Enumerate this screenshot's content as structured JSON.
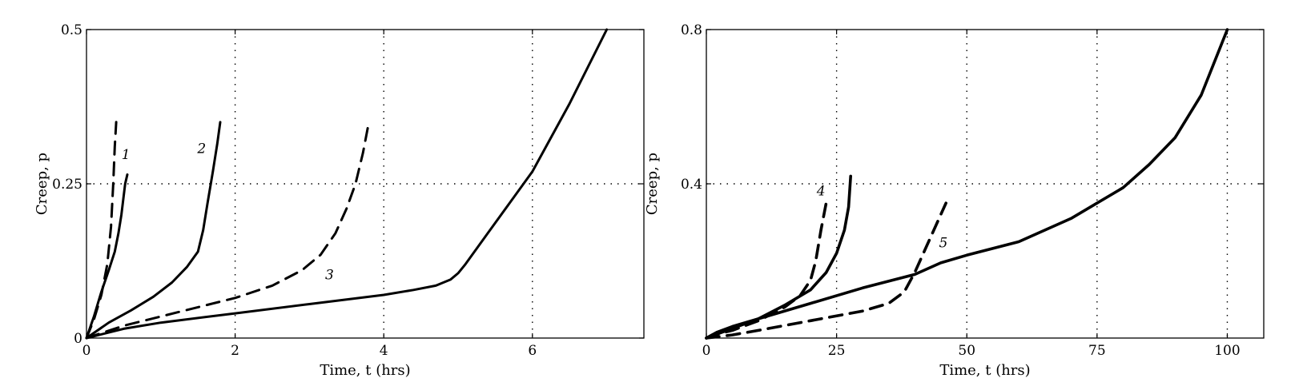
{
  "chart_data": [
    {
      "type": "line",
      "xlabel": "Time, t (hrs)",
      "ylabel": "Creep, p",
      "xlim": [
        0,
        7.5
      ],
      "ylim": [
        0,
        0.5
      ],
      "x_ticks": [
        0,
        2,
        4,
        6
      ],
      "y_ticks": [
        0,
        0.25,
        0.5
      ],
      "x_tick_labels": [
        "0",
        "2",
        "4",
        "6"
      ],
      "y_tick_labels": [
        "0",
        "0.25",
        "0.5"
      ],
      "grid": "dotted",
      "grid_x": [
        2,
        4,
        6
      ],
      "grid_y": [
        0.25
      ],
      "series": [
        {
          "label": "1",
          "style": "dashed",
          "x": [
            0,
            0.1,
            0.2,
            0.28,
            0.33,
            0.36,
            0.38,
            0.4
          ],
          "y": [
            0,
            0.03,
            0.07,
            0.12,
            0.18,
            0.25,
            0.31,
            0.35
          ]
        },
        {
          "label": "1",
          "style": "solid",
          "x": [
            0,
            0.1,
            0.2,
            0.3,
            0.38,
            0.43,
            0.47,
            0.5,
            0.52,
            0.55
          ],
          "y": [
            0,
            0.035,
            0.075,
            0.11,
            0.14,
            0.17,
            0.2,
            0.23,
            0.25,
            0.265
          ]
        },
        {
          "label": "2",
          "style": "solid",
          "x": [
            0,
            0.3,
            0.6,
            0.9,
            1.15,
            1.35,
            1.5,
            1.57,
            1.63,
            1.7,
            1.76,
            1.8
          ],
          "y": [
            0,
            0.025,
            0.045,
            0.067,
            0.09,
            0.115,
            0.14,
            0.175,
            0.22,
            0.27,
            0.315,
            0.35
          ]
        },
        {
          "label": "3",
          "style": "dashed",
          "x": [
            0,
            0.5,
            1,
            1.5,
            2,
            2.5,
            2.9,
            3.15,
            3.35,
            3.5,
            3.62,
            3.72,
            3.8
          ],
          "y": [
            0,
            0.02,
            0.035,
            0.05,
            0.065,
            0.085,
            0.11,
            0.135,
            0.17,
            0.21,
            0.25,
            0.3,
            0.35
          ]
        },
        {
          "label": "",
          "style": "solid",
          "x": [
            0,
            0.5,
            1,
            2,
            3,
            4,
            4.4,
            4.7,
            4.9,
            5.0,
            5.1,
            5.4,
            6,
            6.5,
            7
          ],
          "y": [
            0,
            0.015,
            0.025,
            0.04,
            0.055,
            0.07,
            0.078,
            0.085,
            0.095,
            0.105,
            0.12,
            0.17,
            0.27,
            0.38,
            0.5
          ]
        }
      ],
      "labels": [
        {
          "text": "1",
          "x": 0.53,
          "y": 0.29
        },
        {
          "text": "2",
          "x": 1.55,
          "y": 0.3
        },
        {
          "text": "3",
          "x": 3.27,
          "y": 0.095
        }
      ]
    },
    {
      "type": "line",
      "xlabel": "Time, t (hrs)",
      "ylabel": "Creep, p",
      "xlim": [
        0,
        107
      ],
      "ylim": [
        0,
        0.8
      ],
      "x_ticks": [
        0,
        25,
        50,
        75,
        100
      ],
      "y_ticks": [
        0.4,
        0.8
      ],
      "x_tick_labels": [
        "0",
        "25",
        "50",
        "75",
        "100"
      ],
      "y_tick_labels": [
        "0.4",
        "0.8"
      ],
      "grid": "dotted",
      "grid_x": [
        25,
        50,
        75,
        100
      ],
      "grid_y": [
        0.4
      ],
      "series": [
        {
          "label": "4",
          "style": "dashed",
          "x": [
            0,
            2,
            5,
            10,
            15,
            18,
            20,
            21,
            22,
            23
          ],
          "y": [
            0,
            0.01,
            0.02,
            0.045,
            0.08,
            0.11,
            0.15,
            0.2,
            0.28,
            0.35
          ]
        },
        {
          "label": "4",
          "style": "solid",
          "x": [
            0,
            2,
            5,
            10,
            15,
            20,
            23,
            25,
            26.5,
            27.3,
            27.7
          ],
          "y": [
            0,
            0.01,
            0.025,
            0.05,
            0.085,
            0.125,
            0.17,
            0.22,
            0.28,
            0.34,
            0.42
          ]
        },
        {
          "label": "5",
          "style": "dashed",
          "x": [
            0,
            5,
            10,
            20,
            30,
            35,
            38,
            40,
            42,
            44,
            46
          ],
          "y": [
            0,
            0.008,
            0.02,
            0.045,
            0.07,
            0.09,
            0.12,
            0.17,
            0.23,
            0.29,
            0.35
          ]
        },
        {
          "label": "",
          "style": "solid",
          "x": [
            0,
            2,
            5,
            10,
            20,
            30,
            40,
            45,
            50,
            60,
            70,
            80,
            85,
            90,
            95,
            100
          ],
          "y": [
            0,
            0.015,
            0.03,
            0.05,
            0.09,
            0.13,
            0.165,
            0.195,
            0.215,
            0.25,
            0.31,
            0.39,
            0.45,
            0.52,
            0.63,
            0.8
          ]
        }
      ],
      "labels": [
        {
          "text": "4",
          "x": 22,
          "y": 0.37
        },
        {
          "text": "5",
          "x": 45.5,
          "y": 0.235
        }
      ]
    }
  ]
}
